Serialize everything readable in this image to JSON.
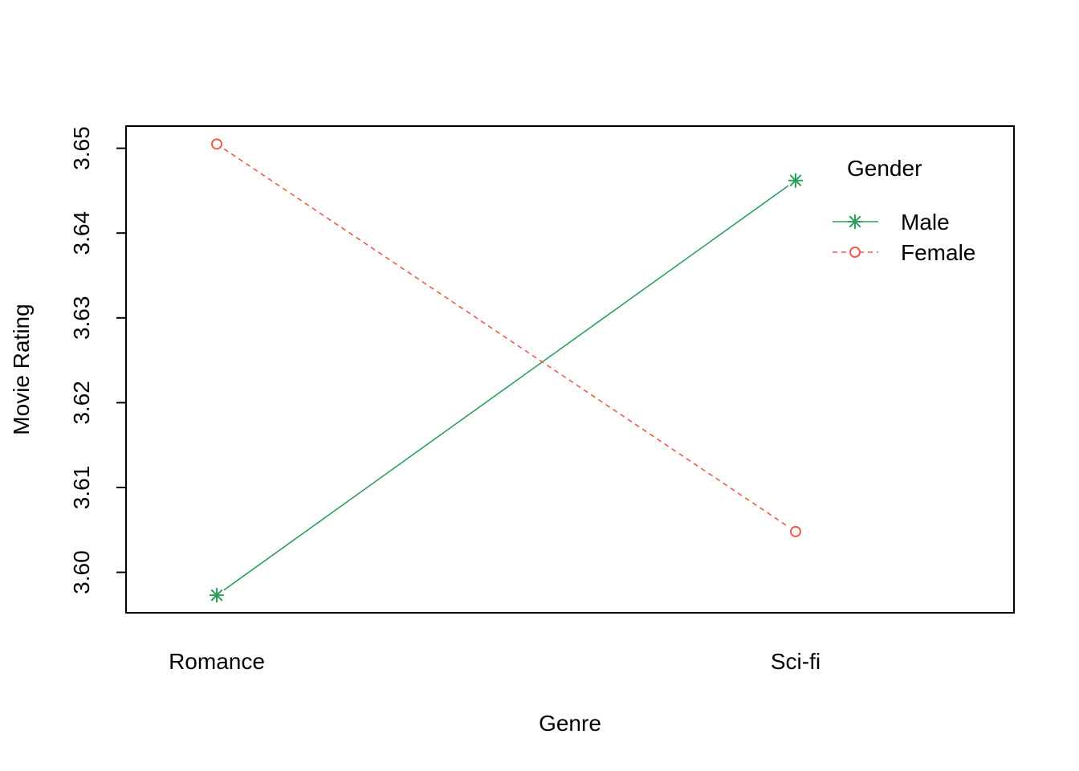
{
  "chart_data": {
    "type": "line",
    "title": "",
    "xlabel": "Genre",
    "ylabel": "Movie Rating",
    "categories": [
      "Romance",
      "Sci-fi"
    ],
    "ylim": [
      3.5952,
      3.6526
    ],
    "yticks": [
      "3.60",
      "3.61",
      "3.62",
      "3.63",
      "3.64",
      "3.65"
    ],
    "ytick_values": [
      3.6,
      3.61,
      3.62,
      3.63,
      3.64,
      3.65
    ],
    "grid": false,
    "legend": {
      "title": "Gender",
      "position": "top-right"
    },
    "series": [
      {
        "name": "Male",
        "values": [
          3.5973,
          3.6462
        ],
        "color": "#2E9E5B",
        "marker": "asterisk",
        "line": "solid"
      },
      {
        "name": "Female",
        "values": [
          3.6505,
          3.6048
        ],
        "color": "#F0584B",
        "marker": "circle",
        "line": "dashed"
      }
    ]
  }
}
